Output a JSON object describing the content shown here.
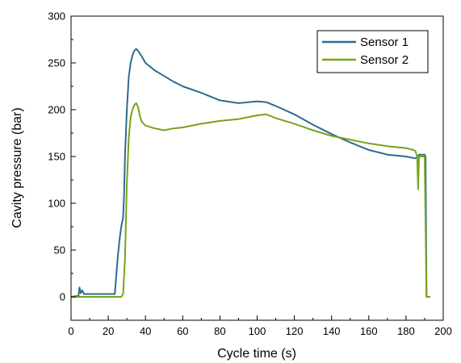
{
  "chart_data": {
    "type": "line",
    "xlabel": "Cycle time (s)",
    "ylabel": "Cavity pressure (bar)",
    "xlim": [
      0,
      200
    ],
    "ylim": [
      -25,
      300
    ],
    "xticks": [
      "0",
      "20",
      "40",
      "60",
      "80",
      "100",
      "120",
      "140",
      "160",
      "180",
      "200"
    ],
    "yticks": [
      "0",
      "50",
      "100",
      "150",
      "200",
      "250",
      "300"
    ],
    "grid": false,
    "legend_position": "top-right",
    "series": [
      {
        "name": "Sensor 1",
        "color": "#2e6b8f",
        "x": [
          0,
          4,
          4.5,
          5.2,
          6,
          7,
          20,
          23.5,
          25,
          26,
          27,
          28,
          28.5,
          29,
          30,
          31,
          32,
          33,
          34,
          35,
          36,
          38,
          40,
          45,
          50,
          55,
          60,
          70,
          80,
          90,
          100,
          105,
          110,
          120,
          130,
          140,
          150,
          160,
          170,
          180,
          185,
          186.5,
          187,
          190,
          190.5,
          191,
          193
        ],
        "y": [
          0,
          1,
          10,
          4,
          7,
          3,
          3,
          3,
          40,
          60,
          75,
          85,
          110,
          150,
          200,
          235,
          250,
          258,
          263,
          265,
          263,
          257,
          250,
          242,
          236,
          230,
          225,
          218,
          210,
          207,
          209,
          208,
          204,
          195,
          184,
          174,
          165,
          157,
          152,
          150,
          148,
          150,
          152,
          152,
          150,
          0,
          0
        ]
      },
      {
        "name": "Sensor 2",
        "color": "#78a21b",
        "x": [
          0,
          27,
          28,
          29,
          30,
          31,
          32,
          33,
          34,
          35,
          36,
          37,
          38,
          40,
          45,
          50,
          55,
          60,
          70,
          80,
          90,
          100,
          105,
          110,
          120,
          130,
          140,
          150,
          160,
          170,
          180,
          184,
          185,
          186,
          186.5,
          187,
          188,
          189,
          190,
          191,
          193
        ],
        "y": [
          0,
          0,
          3,
          40,
          120,
          170,
          192,
          200,
          205,
          207,
          203,
          193,
          187,
          183,
          180,
          178,
          180,
          181,
          185,
          188,
          190,
          194,
          195,
          191,
          185,
          178,
          172,
          168,
          164,
          161,
          159,
          157,
          156,
          150,
          115,
          150,
          150,
          150,
          150,
          0,
          0
        ]
      }
    ]
  }
}
